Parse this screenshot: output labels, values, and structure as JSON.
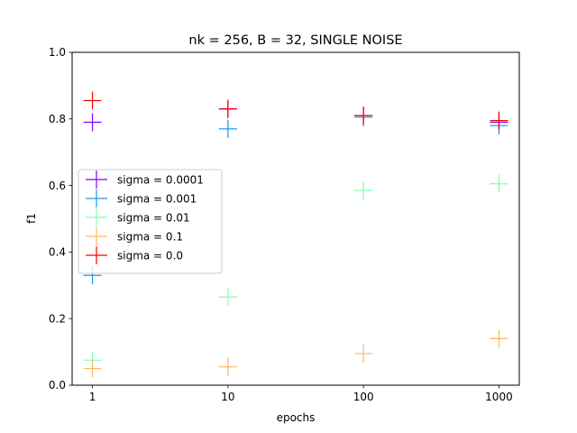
{
  "chart_data": {
    "type": "scatter",
    "title": "nk = 256, B = 32, SINGLE NOISE",
    "xlabel": "epochs",
    "ylabel": "f1",
    "x_scale": "log",
    "x": [
      1,
      10,
      100,
      1000
    ],
    "xtick_labels": [
      "1",
      "10",
      "100",
      "1000"
    ],
    "ylim": [
      0.0,
      1.0
    ],
    "yticks": [
      0.0,
      0.2,
      0.4,
      0.6,
      0.8,
      1.0
    ],
    "ytick_labels": [
      "0.0",
      "0.2",
      "0.4",
      "0.6",
      "0.8",
      "1.0"
    ],
    "grid": false,
    "legend_position": "center-left",
    "marker": "+",
    "series": [
      {
        "name": "sigma = 0.0001",
        "color": "#8000ff",
        "values": [
          0.79,
          0.83,
          0.81,
          0.79
        ],
        "errors": [
          0.02,
          0.01,
          0.02,
          0.02
        ]
      },
      {
        "name": "sigma = 0.001",
        "color": "#1996f3",
        "values": [
          0.33,
          0.77,
          0.805,
          0.78
        ],
        "errors": [
          0.02,
          0.02,
          0.01,
          0.02
        ]
      },
      {
        "name": "sigma = 0.01",
        "color": "#80ffb4",
        "values": [
          0.075,
          0.265,
          0.585,
          0.605
        ],
        "errors": [
          0.02,
          0.02,
          0.02,
          0.02
        ]
      },
      {
        "name": "sigma = 0.1",
        "color": "#ffb360",
        "values": [
          0.05,
          0.055,
          0.095,
          0.14
        ],
        "errors": [
          0.02,
          0.02,
          0.02,
          0.02
        ]
      },
      {
        "name": "sigma = 0.0",
        "color": "#ff0000",
        "values": [
          0.855,
          0.83,
          0.81,
          0.795
        ],
        "errors": [
          0.02,
          0.02,
          0.02,
          0.02
        ]
      }
    ]
  }
}
